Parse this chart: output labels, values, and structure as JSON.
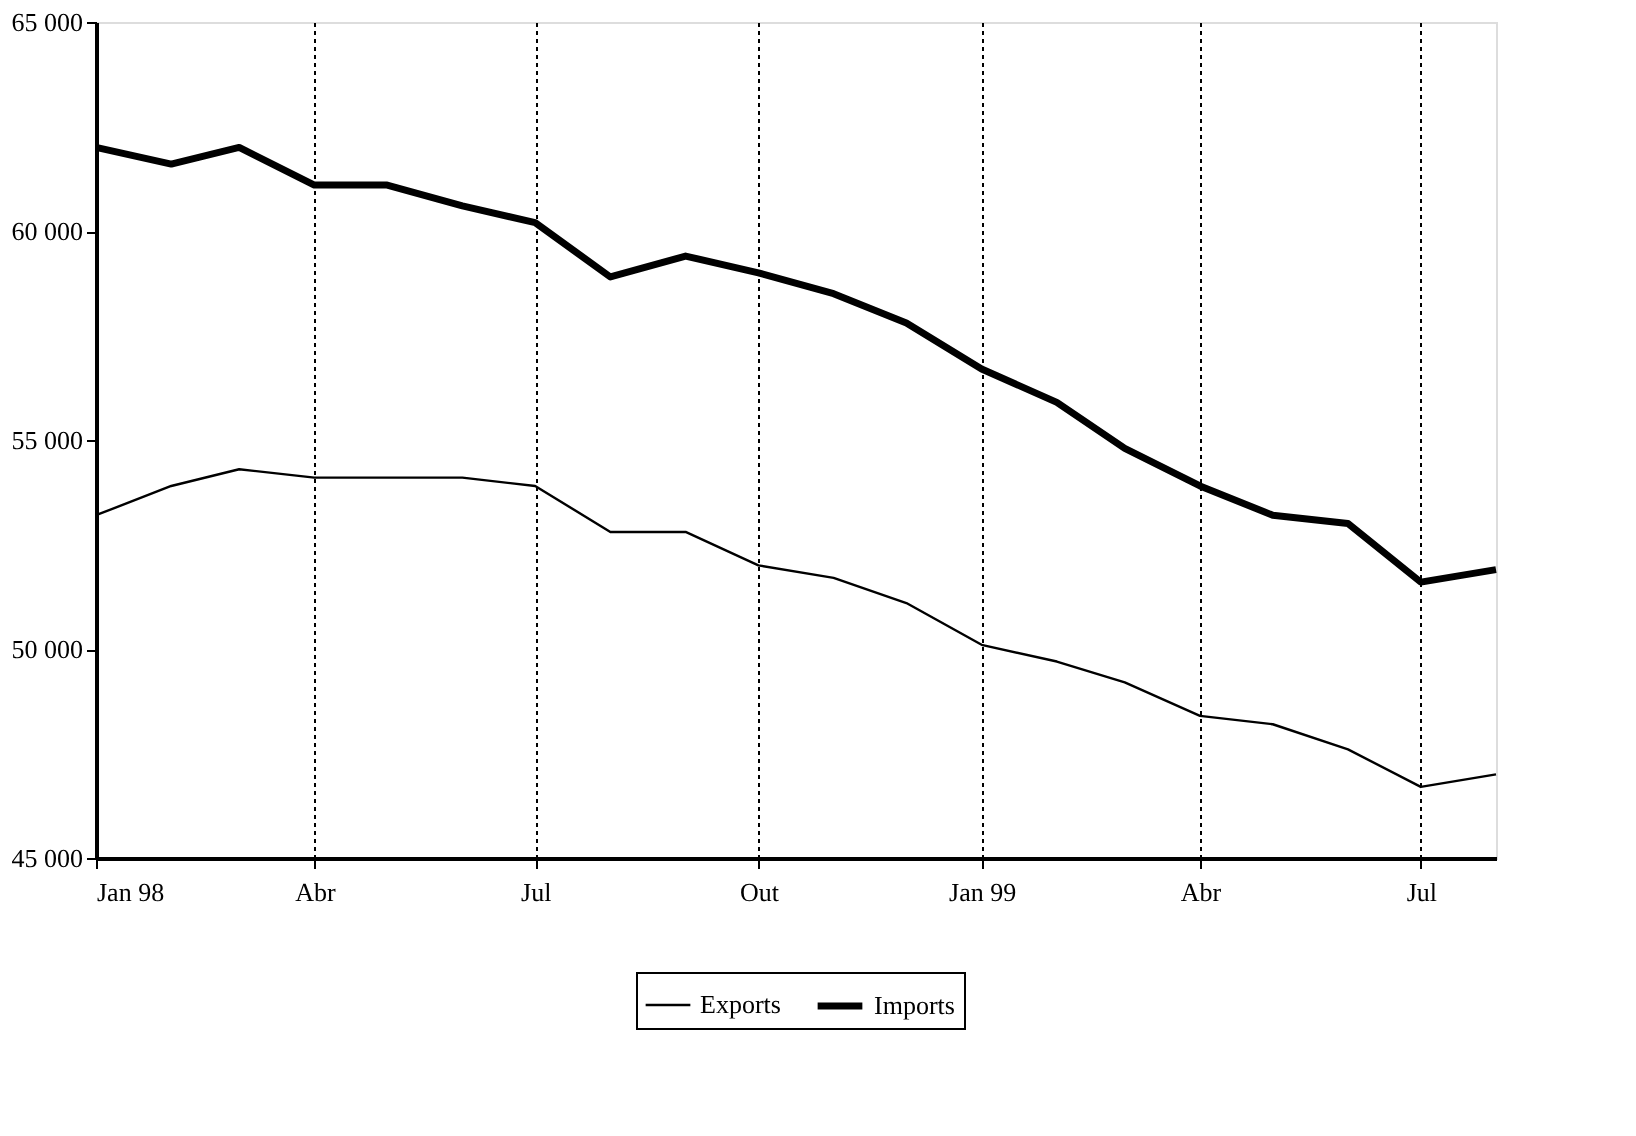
{
  "chart_data": {
    "type": "line",
    "x": [
      "1998-01",
      "1998-02",
      "1998-03",
      "1998-04",
      "1998-05",
      "1998-06",
      "1998-07",
      "1998-08",
      "1998-09",
      "1998-10",
      "1998-11",
      "1998-12",
      "1999-01",
      "1999-02",
      "1999-03",
      "1999-04",
      "1999-05",
      "1999-06",
      "1999-07",
      "1999-08"
    ],
    "series": [
      {
        "name": "Exports",
        "color": "#000000",
        "values": [
          53200,
          53900,
          54300,
          54100,
          54100,
          54100,
          53900,
          52800,
          52800,
          52000,
          51700,
          51100,
          50100,
          49700,
          49200,
          48400,
          48200,
          47600,
          46700,
          47000
        ]
      },
      {
        "name": "Imports",
        "color": "#000000",
        "values": [
          62000,
          61600,
          62000,
          61100,
          61100,
          60600,
          60200,
          58900,
          59400,
          59000,
          58500,
          57800,
          56700,
          55900,
          54800,
          53900,
          53200,
          53000,
          51600,
          51900
        ]
      }
    ],
    "xlim": [
      "1998-01",
      "1999-08"
    ],
    "xticks": [
      {
        "value": "1998-01",
        "label": "Jan 98"
      },
      {
        "value": "1998-04",
        "label": "Abr"
      },
      {
        "value": "1998-07",
        "label": "Jul"
      },
      {
        "value": "1998-10",
        "label": "Out"
      },
      {
        "value": "1999-01",
        "label": "Jan 99"
      },
      {
        "value": "1999-04",
        "label": "Abr"
      },
      {
        "value": "1999-07",
        "label": "Jul"
      }
    ],
    "ylim": [
      45000,
      65000
    ],
    "yticks": [
      {
        "value": 45000,
        "label": "45 000"
      },
      {
        "value": 50000,
        "label": "50 000"
      },
      {
        "value": 55000,
        "label": "55 000"
      },
      {
        "value": 60000,
        "label": "60 000"
      },
      {
        "value": 65000,
        "label": "65 000"
      }
    ],
    "grid": "x",
    "legend": "bottom",
    "line_style": "solid",
    "marker": "none"
  }
}
